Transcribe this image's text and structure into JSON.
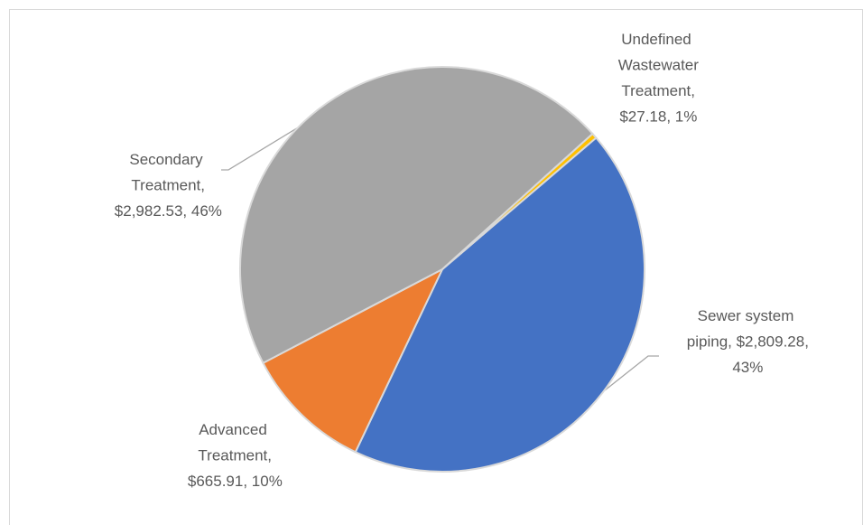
{
  "chart_data": {
    "type": "pie",
    "labels": [
      "Sewer system piping, $2,809.28, 43%",
      "Advanced Treatment, $665.91, 10%",
      "Secondary Treatment, $2,982.53, 46%",
      "Undefined Wastewater Treatment, $27.18, 1%"
    ],
    "values": [
      2809.28,
      665.91,
      2982.53,
      27.18
    ],
    "percents": [
      43,
      10,
      46,
      1
    ],
    "colors": [
      "#4472c4",
      "#ed7d31",
      "#a5a5a5",
      "#ffc000"
    ]
  }
}
